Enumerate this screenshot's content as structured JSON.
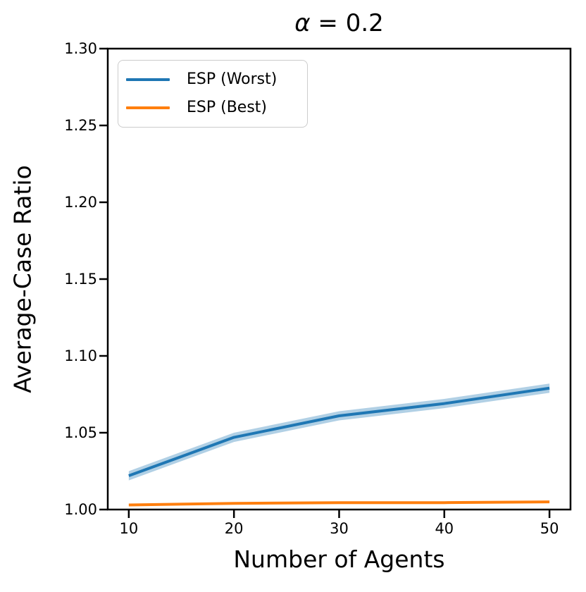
{
  "chart_data": {
    "type": "line",
    "title": {
      "symbol": "α",
      "rest": " = 0.2",
      "full": "α = 0.2"
    },
    "xlabel": "Number of Agents",
    "ylabel": "Average-Case Ratio",
    "xlim": [
      8,
      52
    ],
    "ylim": [
      1.0,
      1.3
    ],
    "xtick_values": [
      10,
      20,
      30,
      40,
      50
    ],
    "xtick_labels": [
      "10",
      "20",
      "30",
      "40",
      "50"
    ],
    "ytick_values": [
      1.0,
      1.05,
      1.1,
      1.15,
      1.2,
      1.25,
      1.3
    ],
    "ytick_labels": [
      "1.00",
      "1.05",
      "1.10",
      "1.15",
      "1.20",
      "1.25",
      "1.30"
    ],
    "grid": false,
    "legend_position": "upper-left",
    "x": [
      10,
      20,
      30,
      40,
      50
    ],
    "series": [
      {
        "name": "ESP (Worst)",
        "color": "#1f77b4",
        "values": [
          1.022,
          1.047,
          1.061,
          1.069,
          1.079
        ],
        "band_upper": [
          1.025,
          1.05,
          1.064,
          1.072,
          1.082
        ],
        "band_lower": [
          1.019,
          1.044,
          1.058,
          1.066,
          1.076
        ],
        "band_opacity": 0.35
      },
      {
        "name": "ESP (Best)",
        "color": "#ff7f0e",
        "values": [
          1.003,
          1.004,
          1.0045,
          1.0045,
          1.005
        ]
      }
    ],
    "axis_color": "#000000",
    "background": "#ffffff"
  }
}
